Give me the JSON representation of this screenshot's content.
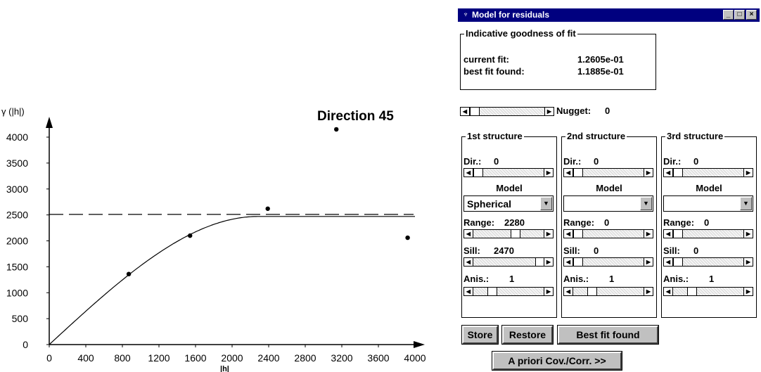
{
  "window": {
    "title": "Model for residuals",
    "minimize_glyph": "_",
    "maximize_glyph": "□",
    "close_glyph": "×"
  },
  "goodness": {
    "label": "Indicative goodness of fit",
    "current_label": "current fit:",
    "current_value": "1.2605e-01",
    "best_label": "best fit found:",
    "best_value": "1.1885e-01"
  },
  "nugget": {
    "label": "Nugget:",
    "value": "0"
  },
  "structures": [
    {
      "label": "1st structure",
      "dir_label": "Dir.:",
      "dir_value": "0",
      "model_label": "Model",
      "model_value": "Spherical",
      "range_label": "Range:",
      "range_value": "2280",
      "sill_label": "Sill:",
      "sill_value": "2470",
      "anis_label": "Anis.:",
      "anis_value": "1"
    },
    {
      "label": "2nd structure",
      "dir_label": "Dir.:",
      "dir_value": "0",
      "model_label": "Model",
      "model_value": "",
      "range_label": "Range:",
      "range_value": "0",
      "sill_label": "Sill:",
      "sill_value": "0",
      "anis_label": "Anis.:",
      "anis_value": "1"
    },
    {
      "label": "3rd structure",
      "dir_label": "Dir.:",
      "dir_value": "0",
      "model_label": "Model",
      "model_value": "",
      "range_label": "Range:",
      "range_value": "0",
      "sill_label": "Sill:",
      "sill_value": "0",
      "anis_label": "Anis.:",
      "anis_value": "1"
    }
  ],
  "buttons": {
    "store": "Store",
    "restore": "Restore",
    "best_fit": "Best fit found",
    "a_priori": "A priori Cov./Corr. >>"
  },
  "chart_data": {
    "type": "scatter",
    "title": "Direction 45",
    "ylabel": "γ (|h|)",
    "xlabel": "|h|",
    "xlim": [
      0,
      4000
    ],
    "ylim": [
      0,
      4000
    ],
    "x_ticks": [
      0,
      400,
      800,
      1200,
      1600,
      2000,
      2400,
      2800,
      3200,
      3600,
      4000
    ],
    "y_ticks": [
      0,
      500,
      1000,
      1500,
      2000,
      2500,
      3000,
      3500,
      4000
    ],
    "grid": false,
    "points": [
      {
        "x": 870,
        "y": 1360
      },
      {
        "x": 1540,
        "y": 2100
      },
      {
        "x": 2390,
        "y": 2620
      },
      {
        "x": 3140,
        "y": 4150
      },
      {
        "x": 3920,
        "y": 2060
      }
    ],
    "model": {
      "type": "spherical",
      "nugget": 0,
      "range": 2280,
      "sill": 2470
    },
    "reference_line": {
      "y": 2510,
      "style": "dashed"
    }
  }
}
